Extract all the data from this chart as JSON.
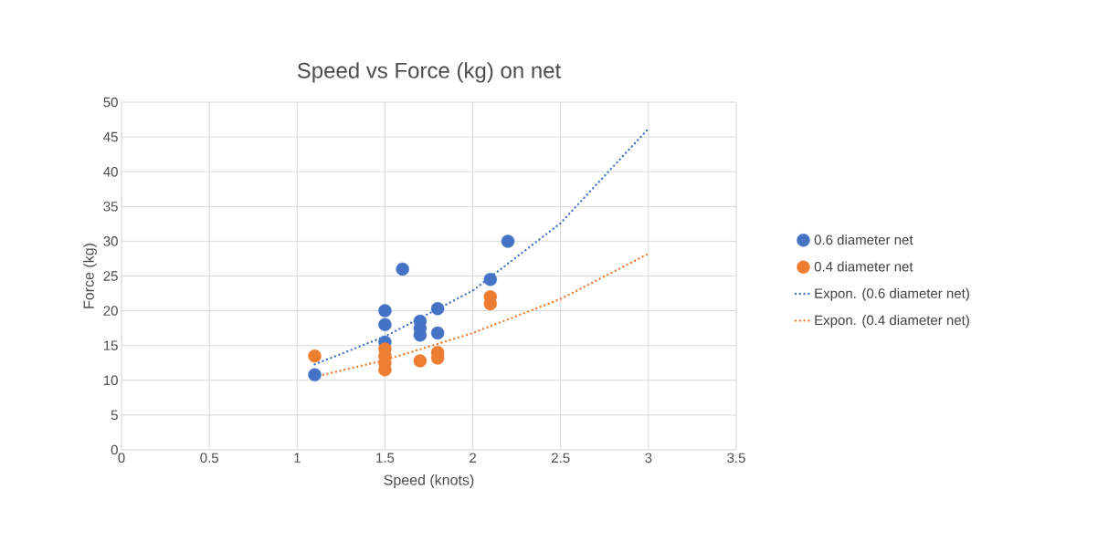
{
  "chart_data": {
    "type": "scatter",
    "title": "Speed vs Force (kg) on net",
    "xlabel": "Speed (knots)",
    "ylabel": "Force (kg)",
    "xlim": [
      0,
      3.5
    ],
    "xticks": [
      0,
      0.5,
      1,
      1.5,
      2,
      2.5,
      3,
      3.5
    ],
    "ylim": [
      0,
      50
    ],
    "yticks": [
      0,
      5,
      10,
      15,
      20,
      25,
      30,
      35,
      40,
      45,
      50
    ],
    "grid": true,
    "legend": "right",
    "series": [
      {
        "name": "0.6 diameter net",
        "marker": "circle",
        "color": "#4472c4",
        "x": [
          1.1,
          1.5,
          1.5,
          1.5,
          1.6,
          1.7,
          1.7,
          1.7,
          1.8,
          1.8,
          2.1,
          2.2
        ],
        "values": [
          10.8,
          20,
          18,
          15.5,
          26,
          18.5,
          17.5,
          16.5,
          20.3,
          16.8,
          24.5,
          30
        ]
      },
      {
        "name": "0.4 diameter net",
        "marker": "circle",
        "color": "#ed7d31",
        "x": [
          1.1,
          1.5,
          1.5,
          1.5,
          1.5,
          1.7,
          1.8,
          1.8,
          2.1,
          2.1
        ],
        "values": [
          13.5,
          14.5,
          13.5,
          12.5,
          11.5,
          12.8,
          14,
          13.2,
          22,
          21
        ]
      },
      {
        "name": "Expon. (0.6 diameter net)",
        "type": "line",
        "marker": "none",
        "line_style": "dotted",
        "color": "#4472c4",
        "x": [
          1.1,
          1.5,
          2,
          2.5,
          3
        ],
        "values": [
          12.3,
          16.3,
          22.9,
          32.6,
          46.2
        ]
      },
      {
        "name": "Expon. (0.4 diameter net)",
        "type": "line",
        "marker": "none",
        "line_style": "dotted",
        "color": "#ed7d31",
        "x": [
          1.1,
          1.5,
          2,
          2.5,
          3
        ],
        "values": [
          10.5,
          12.9,
          16.8,
          21.7,
          28.2
        ]
      }
    ]
  }
}
